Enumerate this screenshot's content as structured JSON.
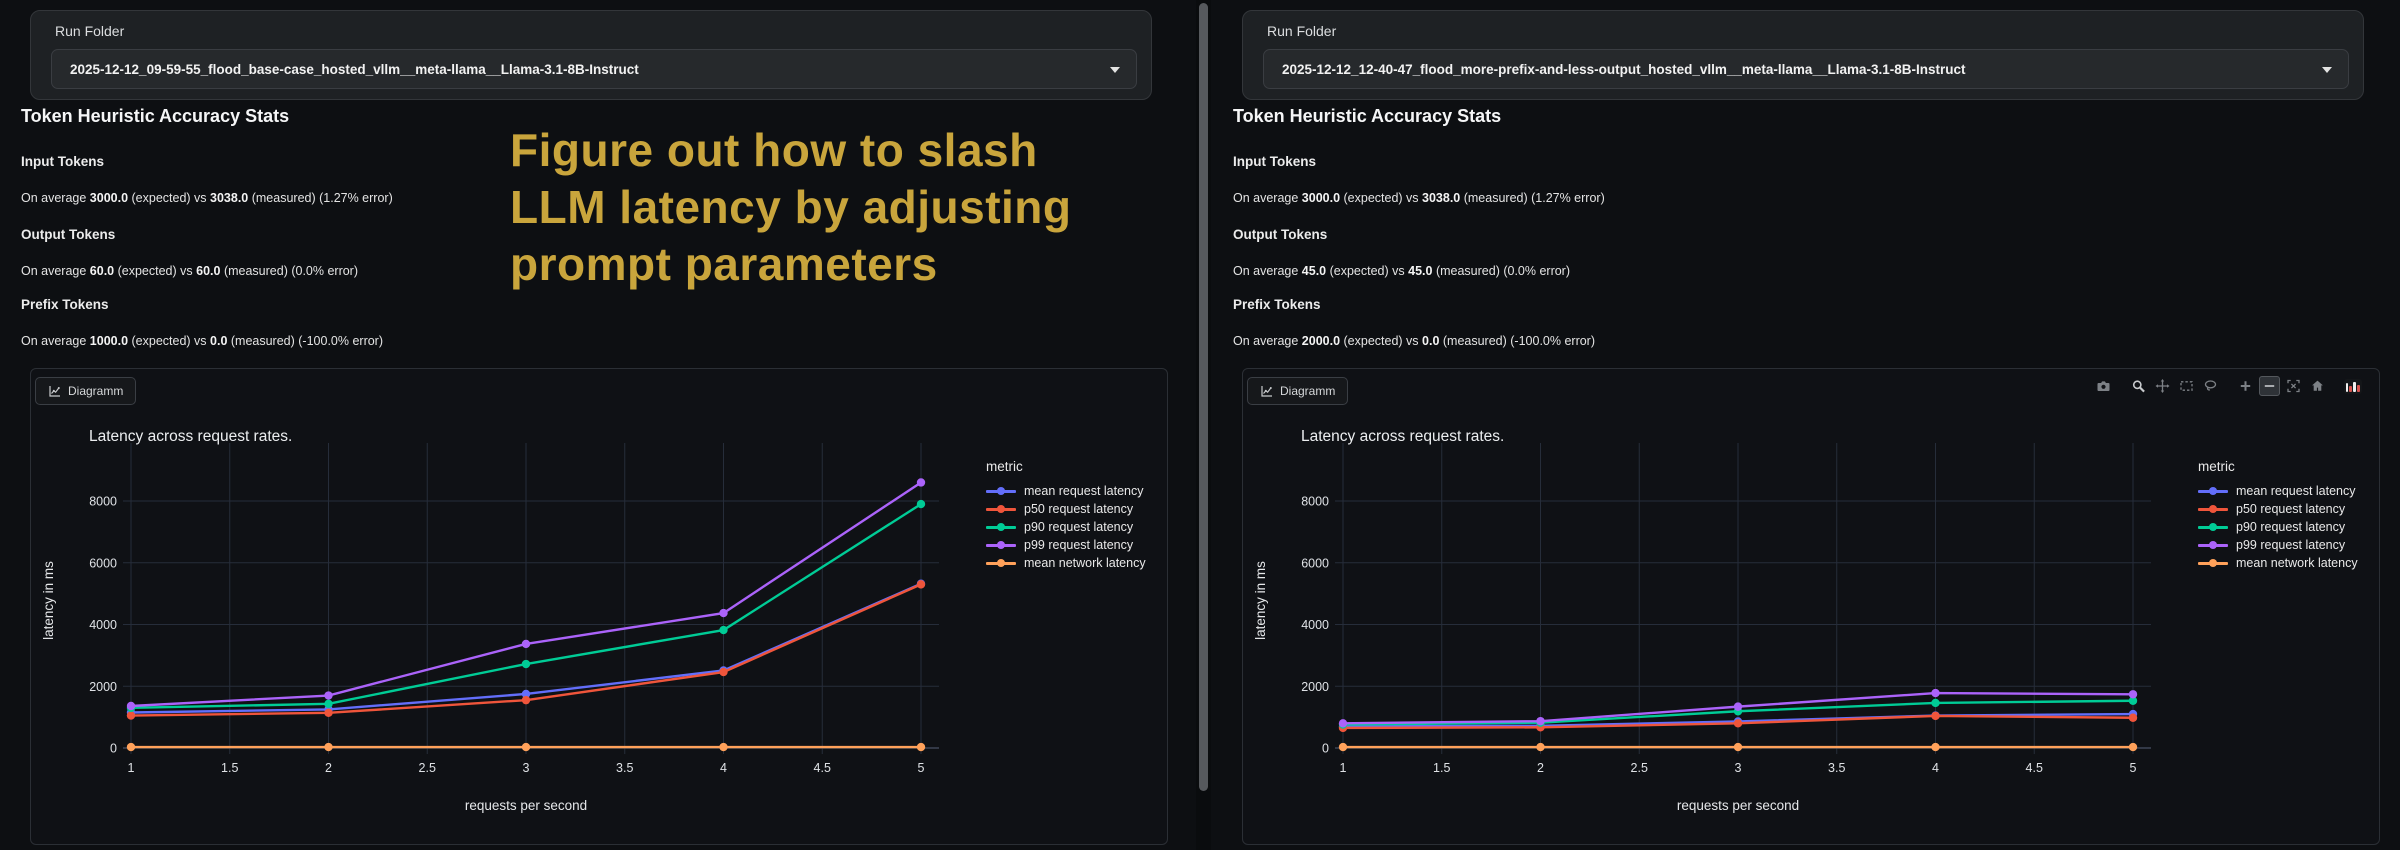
{
  "overlay": {
    "headline": "Figure out how to slash\nLLM latency by adjusting\nprompt parameters",
    "color": "#c9a53c"
  },
  "panels": [
    {
      "run_folder": {
        "label": "Run Folder",
        "value": "2025-12-12_09-59-55_flood_base-case_hosted_vllm__meta-llama__Llama-3.1-8B-Instruct"
      },
      "stats": {
        "heading": "Token Heuristic Accuracy Stats",
        "items": [
          {
            "label": "Input Tokens",
            "prefix": "On average ",
            "expected": "3000.0",
            "mid": " (expected) vs ",
            "measured": "3038.0",
            "suffix": " (measured) (1.27% error)"
          },
          {
            "label": "Output Tokens",
            "prefix": "On average ",
            "expected": "60.0",
            "mid": " (expected) vs ",
            "measured": "60.0",
            "suffix": " (measured) (0.0% error)"
          },
          {
            "label": "Prefix Tokens",
            "prefix": "On average ",
            "expected": "1000.0",
            "mid": " (expected) vs ",
            "measured": "0.0",
            "suffix": " (measured) (-100.0% error)"
          }
        ]
      },
      "chart_tab": "Diagramm"
    },
    {
      "run_folder": {
        "label": "Run Folder",
        "value": "2025-12-12_12-40-47_flood_more-prefix-and-less-output_hosted_vllm__meta-llama__Llama-3.1-8B-Instruct"
      },
      "stats": {
        "heading": "Token Heuristic Accuracy Stats",
        "items": [
          {
            "label": "Input Tokens",
            "prefix": "On average ",
            "expected": "3000.0",
            "mid": " (expected) vs ",
            "measured": "3038.0",
            "suffix": " (measured) (1.27% error)"
          },
          {
            "label": "Output Tokens",
            "prefix": "On average ",
            "expected": "45.0",
            "mid": " (expected) vs ",
            "measured": "45.0",
            "suffix": " (measured) (0.0% error)"
          },
          {
            "label": "Prefix Tokens",
            "prefix": "On average ",
            "expected": "2000.0",
            "mid": " (expected) vs ",
            "measured": "0.0",
            "suffix": " (measured) (-100.0% error)"
          }
        ]
      },
      "chart_tab": "Diagramm"
    }
  ],
  "chart_data": [
    {
      "type": "line",
      "title": "Latency across request rates.",
      "xlabel": "requests per second",
      "ylabel": "latency in ms",
      "legend_title": "metric",
      "x": [
        1,
        2,
        3,
        4,
        5
      ],
      "xticks": [
        1,
        1.5,
        2,
        2.5,
        3,
        3.5,
        4,
        4.5,
        5
      ],
      "yticks": [
        0,
        2000,
        4000,
        6000,
        8000
      ],
      "ylim": [
        0,
        9400
      ],
      "grid": true,
      "legend_position": "right",
      "series": [
        {
          "name": "mean request latency",
          "color": "#636efa",
          "values": [
            1150,
            1250,
            1750,
            2510,
            5320
          ]
        },
        {
          "name": "p50 request latency",
          "color": "#ef553b",
          "values": [
            1050,
            1140,
            1550,
            2460,
            5300
          ]
        },
        {
          "name": "p90 request latency",
          "color": "#00cc96",
          "values": [
            1300,
            1430,
            2720,
            3820,
            7900
          ]
        },
        {
          "name": "p99 request latency",
          "color": "#ab63fa",
          "values": [
            1360,
            1700,
            3370,
            4370,
            8600
          ]
        },
        {
          "name": "mean network latency",
          "color": "#ffa15a",
          "values": [
            30,
            30,
            30,
            30,
            30
          ]
        }
      ]
    },
    {
      "type": "line",
      "title": "Latency across request rates.",
      "xlabel": "requests per second",
      "ylabel": "latency in ms",
      "legend_title": "metric",
      "x": [
        1,
        2,
        3,
        4,
        5
      ],
      "xticks": [
        1,
        1.5,
        2,
        2.5,
        3,
        3.5,
        4,
        4.5,
        5
      ],
      "yticks": [
        0,
        2000,
        4000,
        6000,
        8000
      ],
      "ylim": [
        0,
        9400
      ],
      "grid": true,
      "legend_position": "right",
      "series": [
        {
          "name": "mean request latency",
          "color": "#636efa",
          "values": [
            700,
            720,
            860,
            1050,
            1100
          ]
        },
        {
          "name": "p50 request latency",
          "color": "#ef553b",
          "values": [
            650,
            670,
            800,
            1040,
            980
          ]
        },
        {
          "name": "p90 request latency",
          "color": "#00cc96",
          "values": [
            760,
            820,
            1190,
            1460,
            1530
          ]
        },
        {
          "name": "p99 request latency",
          "color": "#ab63fa",
          "values": [
            800,
            870,
            1340,
            1780,
            1740
          ]
        },
        {
          "name": "mean network latency",
          "color": "#ffa15a",
          "values": [
            30,
            30,
            30,
            30,
            30
          ]
        }
      ]
    }
  ],
  "modebar": {
    "icons": [
      "camera",
      "zoom",
      "pan",
      "box-select",
      "lasso-select",
      "zoom-in",
      "zoom-out",
      "autoscale",
      "reset-axes",
      "plotly-logo"
    ],
    "active_icon": "zoom-out"
  }
}
